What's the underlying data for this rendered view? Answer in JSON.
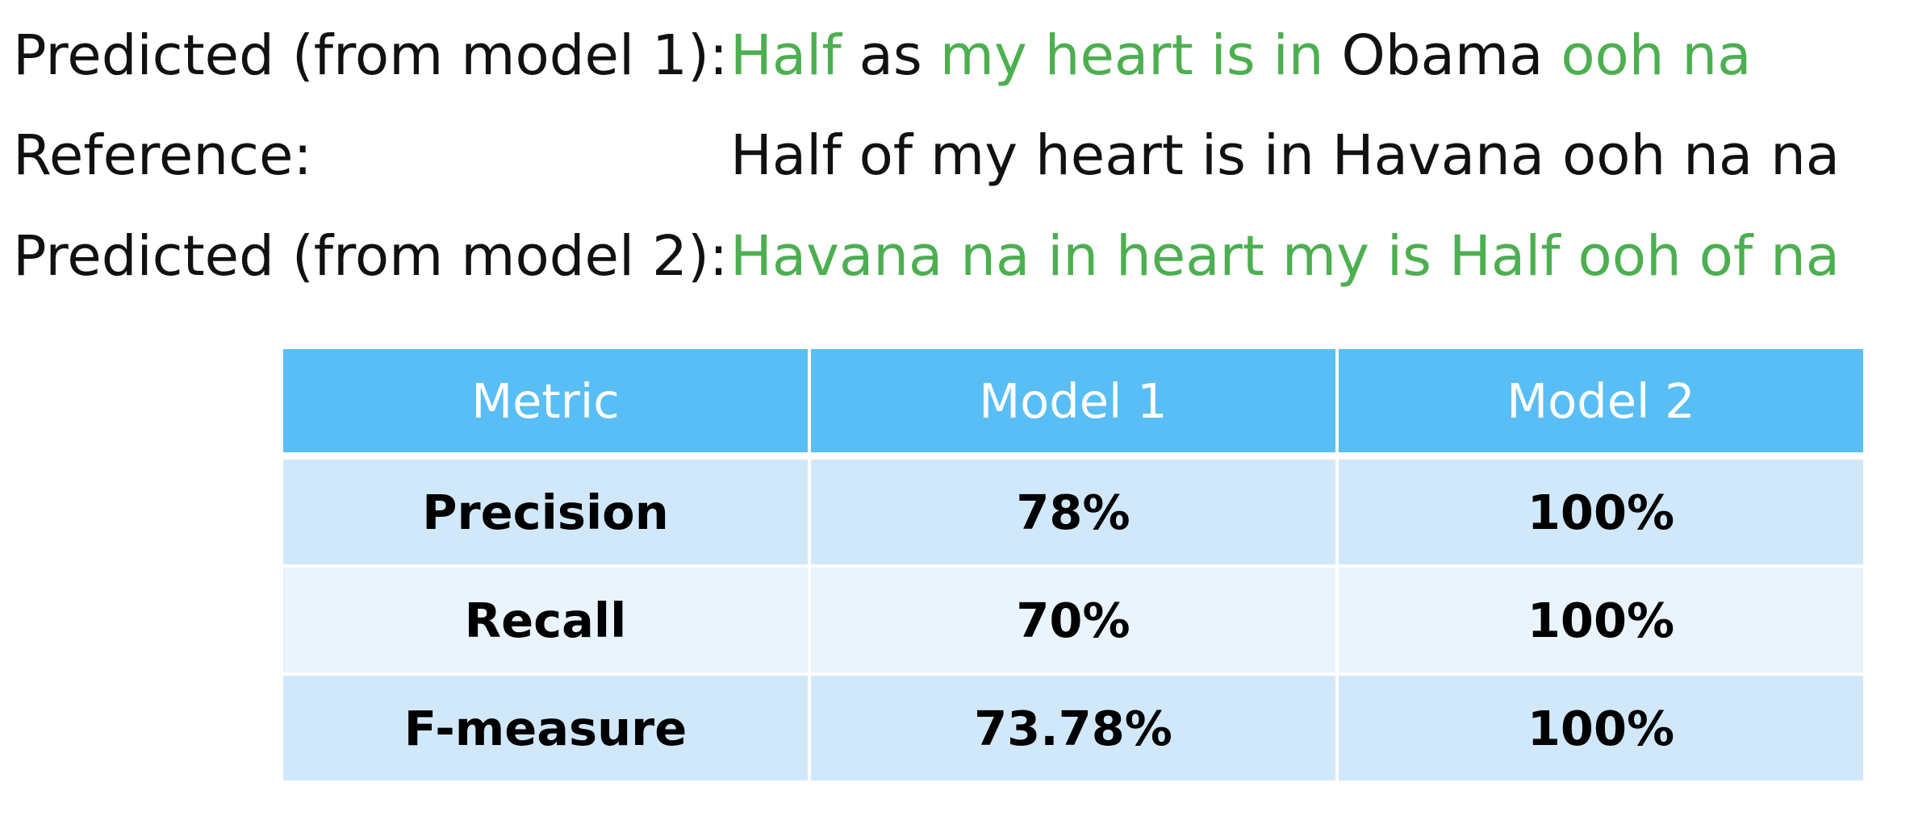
{
  "comparison": {
    "lines": [
      {
        "label": "Predicted (from model 1):",
        "words": [
          {
            "text": "Half",
            "match": true
          },
          {
            "text": "as",
            "match": false
          },
          {
            "text": "my",
            "match": true
          },
          {
            "text": "heart",
            "match": true
          },
          {
            "text": "is",
            "match": true
          },
          {
            "text": "in",
            "match": true
          },
          {
            "text": "Obama",
            "match": false
          },
          {
            "text": "ooh",
            "match": true
          },
          {
            "text": "na",
            "match": true
          }
        ]
      },
      {
        "label": "Reference:",
        "words": [
          {
            "text": "Half",
            "match": false
          },
          {
            "text": "of",
            "match": false
          },
          {
            "text": "my",
            "match": false
          },
          {
            "text": "heart",
            "match": false
          },
          {
            "text": "is",
            "match": false
          },
          {
            "text": "in",
            "match": false
          },
          {
            "text": "Havana",
            "match": false
          },
          {
            "text": "ooh",
            "match": false
          },
          {
            "text": "na",
            "match": false
          },
          {
            "text": "na",
            "match": false
          }
        ]
      },
      {
        "label": "Predicted (from model 2):",
        "words": [
          {
            "text": "Havana",
            "match": true
          },
          {
            "text": "na",
            "match": true
          },
          {
            "text": "in",
            "match": true
          },
          {
            "text": "heart",
            "match": true
          },
          {
            "text": "my",
            "match": true
          },
          {
            "text": "is",
            "match": true
          },
          {
            "text": "Half",
            "match": true
          },
          {
            "text": "ooh",
            "match": true
          },
          {
            "text": "of",
            "match": true
          },
          {
            "text": "na",
            "match": true
          }
        ]
      }
    ]
  },
  "table": {
    "headers": [
      "Metric",
      "Model 1",
      "Model 2"
    ],
    "rows": [
      [
        "Precision",
        "78%",
        "100%"
      ],
      [
        "Recall",
        "70%",
        "100%"
      ],
      [
        "F-measure",
        "73.78%",
        "100%"
      ]
    ]
  },
  "colors": {
    "match": "#4caf50",
    "text": "#111111",
    "header_bg": "#58bef5",
    "row_odd_bg": "#d1e8fb",
    "row_even_bg": "#e9f4fd"
  }
}
